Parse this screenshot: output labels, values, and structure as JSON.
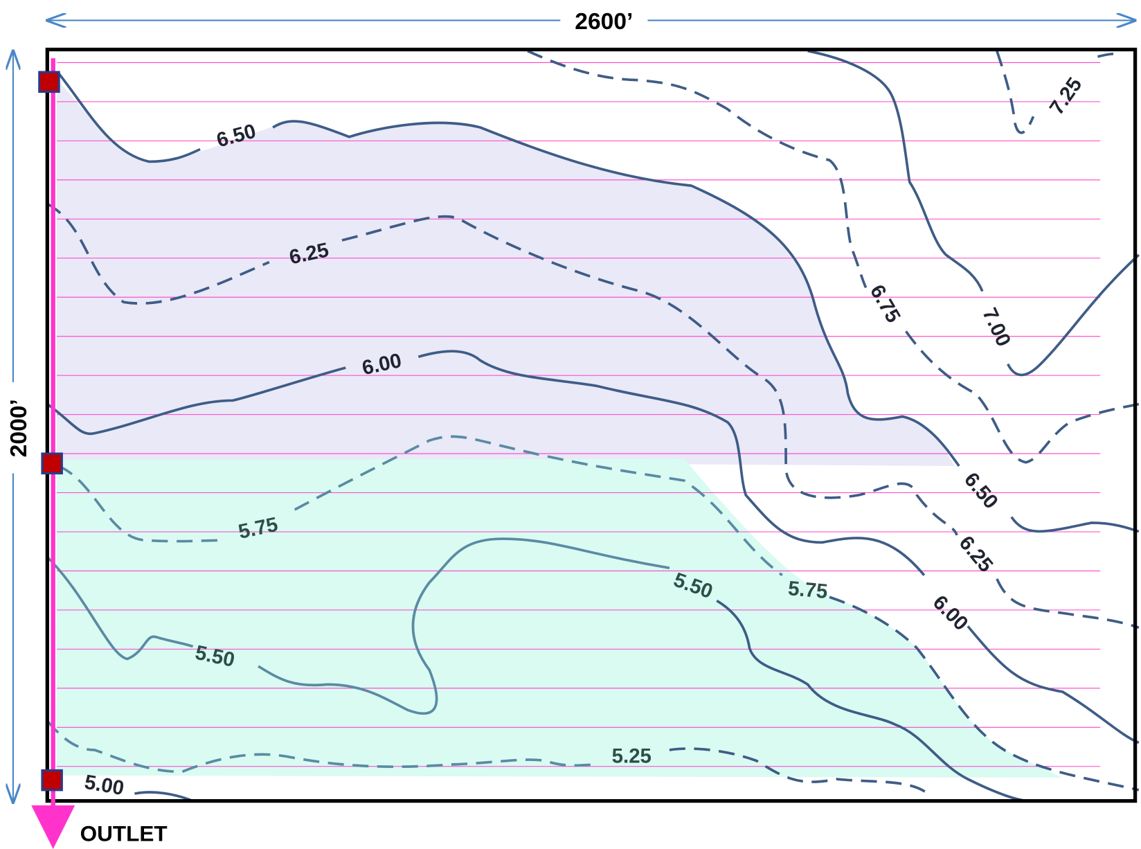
{
  "dimensions": {
    "width": "2600’",
    "height": "2000’"
  },
  "outlet_label": "OUTLET",
  "contour_labels": [
    "6.50",
    "6.25",
    "6.00",
    "5.75",
    "5.50",
    "5.50",
    "5.25",
    "5.00",
    "6.75",
    "7.00",
    "7.25",
    "6.50",
    "6.25",
    "6.00",
    "5.75"
  ]
}
